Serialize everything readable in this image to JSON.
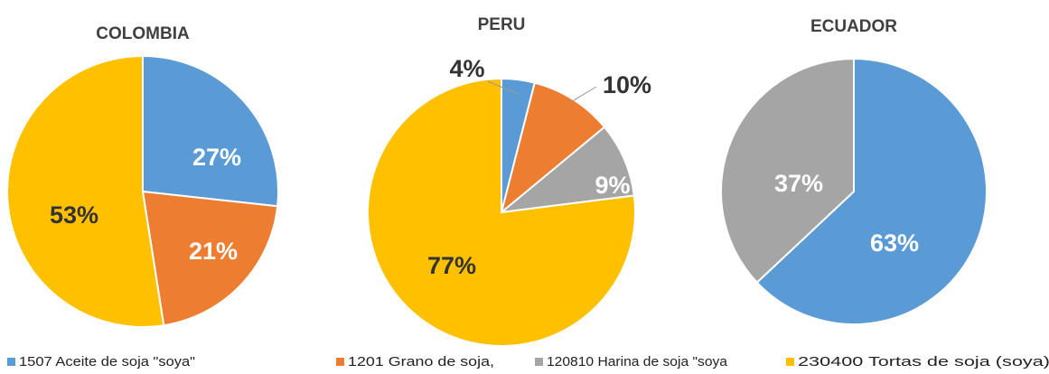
{
  "legend": {
    "items": [
      {
        "name": "1507  Aceite de soja \"soya\"",
        "color": "#5b9bd5"
      },
      {
        "name": "1201  Grano de soja,",
        "color": "#ed7d31"
      },
      {
        "name": "120810 Harina de soja \"soya",
        "color": "#a5a5a5"
      },
      {
        "name": "230400  Tortas de soja (soya),",
        "color": "#ffc000"
      }
    ]
  },
  "chart_data": [
    {
      "type": "pie",
      "title": "COLOMBIA",
      "values": [
        27,
        21,
        null,
        53
      ],
      "value_labels": [
        "27%",
        "21%",
        null,
        "53%"
      ]
    },
    {
      "type": "pie",
      "title": "PERU",
      "values": [
        4,
        10,
        9,
        77
      ],
      "value_labels": [
        "4%",
        "10%",
        "9%",
        "77%"
      ]
    },
    {
      "type": "pie",
      "title": "ECUADOR",
      "values": [
        63,
        null,
        37,
        null
      ],
      "value_labels": [
        "63%",
        null,
        "37%",
        null
      ]
    }
  ]
}
